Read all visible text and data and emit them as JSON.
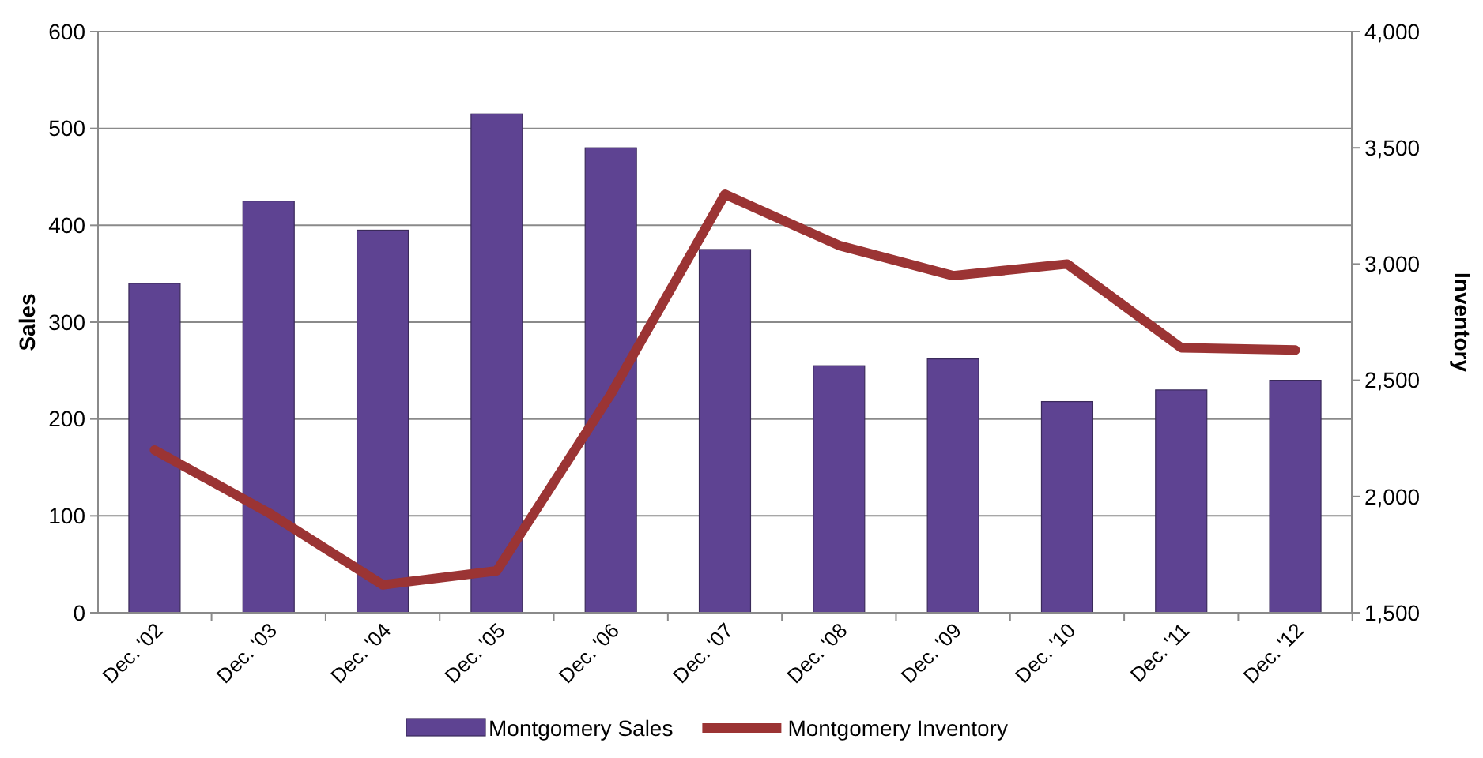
{
  "chart_data": {
    "type": "bar",
    "categories": [
      "Dec. '02",
      "Dec. '03",
      "Dec. '04",
      "Dec. '05",
      "Dec. '06",
      "Dec. '07",
      "Dec. '08",
      "Dec. '09",
      "Dec. '10",
      "Dec. '11",
      "Dec. '12"
    ],
    "series": [
      {
        "name": "Montgomery Sales",
        "color": "#5e4392",
        "values": [
          340,
          425,
          395,
          515,
          480,
          375,
          255,
          262,
          218,
          230,
          240
        ]
      },
      {
        "name": "Montgomery Inventory",
        "type": "line",
        "axis": "y2",
        "color": "#9b3434",
        "values": [
          2200,
          1930,
          1620,
          1680,
          2440,
          3300,
          3080,
          2950,
          3000,
          2640,
          2630
        ]
      }
    ],
    "ylabel": "Sales",
    "y2label": "Inventory",
    "ylim": [
      0,
      600
    ],
    "yticks": [
      0,
      100,
      200,
      300,
      400,
      500,
      600
    ],
    "y2lim": [
      1500,
      4000
    ],
    "y2ticks": [
      {
        "value": 1500,
        "label": "1,500"
      },
      {
        "value": 2000,
        "label": "2,000"
      },
      {
        "value": 2500,
        "label": "2,500"
      },
      {
        "value": 3000,
        "label": "3,000"
      },
      {
        "value": 3500,
        "label": "3,500"
      },
      {
        "value": 4000,
        "label": "4,000"
      }
    ],
    "grid": "y",
    "legend": "bottom"
  }
}
